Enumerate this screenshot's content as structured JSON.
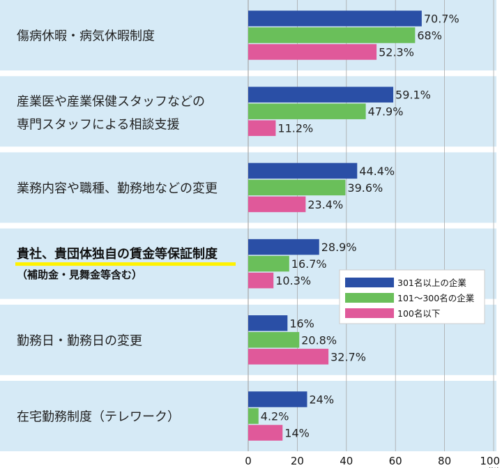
{
  "chart_data": {
    "type": "bar",
    "orientation": "horizontal",
    "categories": [
      {
        "lines": [
          "傷病休暇・病気休暇制度"
        ]
      },
      {
        "lines": [
          "産業医や産業保健スタッフなどの",
          "専門スタッフによる相談支援"
        ]
      },
      {
        "lines": [
          "業務内容や職種、勤務地などの変更"
        ]
      },
      {
        "lines": [
          "貴社、貴団体独自の賃金等保証制度",
          "（補助金・見舞金等含む）"
        ],
        "highlight": true
      },
      {
        "lines": [
          "勤務日・勤務日の変更"
        ]
      },
      {
        "lines": [
          "在宅勤務制度（テレワーク）"
        ]
      }
    ],
    "series": [
      {
        "name": "301名以上の企業",
        "color": "#2a4fa6",
        "values": [
          70.7,
          59.1,
          44.4,
          28.9,
          16,
          24
        ],
        "labels": [
          "70.7%",
          "59.1%",
          "44.4%",
          "28.9%",
          "16%",
          "24%"
        ]
      },
      {
        "name": "101～300名の企業",
        "color": "#6abf5a",
        "values": [
          68,
          47.9,
          39.6,
          16.7,
          20.8,
          4.2
        ],
        "labels": [
          "68%",
          "47.9%",
          "39.6%",
          "16.7%",
          "20.8%",
          "4.2%"
        ]
      },
      {
        "name": "100名以下",
        "color": "#e0599a",
        "values": [
          52.3,
          11.2,
          23.4,
          10.3,
          32.7,
          14
        ],
        "labels": [
          "52.3%",
          "11.2%",
          "23.4%",
          "10.3%",
          "32.7%",
          "14%"
        ]
      }
    ],
    "x_ticks": [
      "0",
      "20",
      "40",
      "60",
      "80",
      "100"
    ],
    "x_unit": "(%)",
    "xlim": [
      0,
      100
    ],
    "grid": true,
    "legend_position": "right-middle",
    "colors": {
      "band": "#d6eaf6",
      "grid": "#a8a8a8",
      "highlight": "#fff200"
    }
  }
}
